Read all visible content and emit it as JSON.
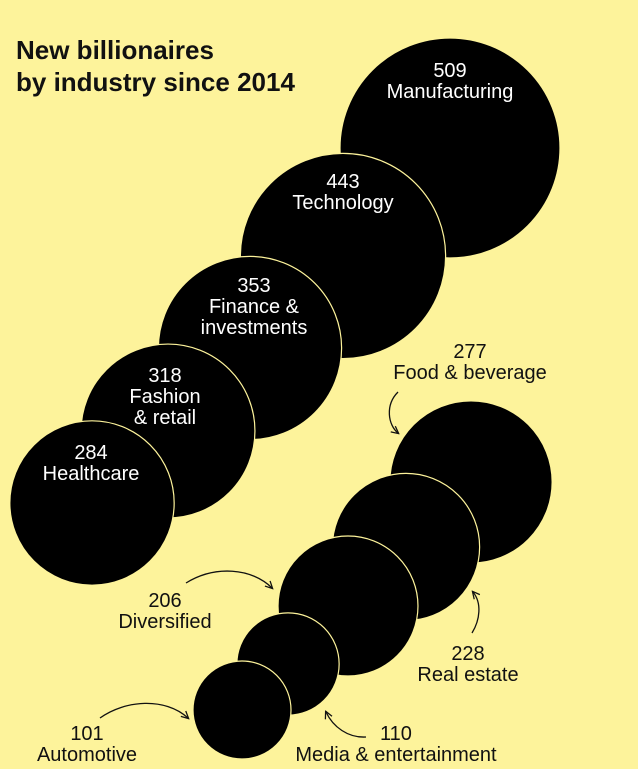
{
  "colors": {
    "background": "#fdf39b",
    "bubble": "#000000",
    "bubble_outline": "#fdf39b",
    "text_inside": "#ffffff",
    "text_outside": "#111111"
  },
  "chart_data": {
    "type": "bubble",
    "title": [
      "New billionaires",
      "by industry since 2014"
    ],
    "series": [
      {
        "name": "Manufacturing",
        "label_lines": [
          "Manufacturing"
        ],
        "value": 509,
        "label_position": "inside"
      },
      {
        "name": "Technology",
        "label_lines": [
          "Technology"
        ],
        "value": 443,
        "label_position": "inside"
      },
      {
        "name": "Finance & investments",
        "label_lines": [
          "Finance &",
          "investments"
        ],
        "value": 353,
        "label_position": "inside"
      },
      {
        "name": "Fashion & retail",
        "label_lines": [
          "Fashion",
          "& retail"
        ],
        "value": 318,
        "label_position": "inside"
      },
      {
        "name": "Healthcare",
        "label_lines": [
          "Healthcare"
        ],
        "value": 284,
        "label_position": "inside"
      },
      {
        "name": "Food & beverage",
        "label_lines": [
          "Food & beverage"
        ],
        "value": 277,
        "label_position": "outside"
      },
      {
        "name": "Real estate",
        "label_lines": [
          "Real estate"
        ],
        "value": 228,
        "label_position": "outside"
      },
      {
        "name": "Diversified",
        "label_lines": [
          "Diversified"
        ],
        "value": 206,
        "label_position": "outside"
      },
      {
        "name": "Media & entertainment",
        "label_lines": [
          "Media & entertainment"
        ],
        "value": 110,
        "label_position": "outside"
      },
      {
        "name": "Automotive",
        "label_lines": [
          "Automotive"
        ],
        "value": 101,
        "label_position": "outside"
      }
    ]
  }
}
